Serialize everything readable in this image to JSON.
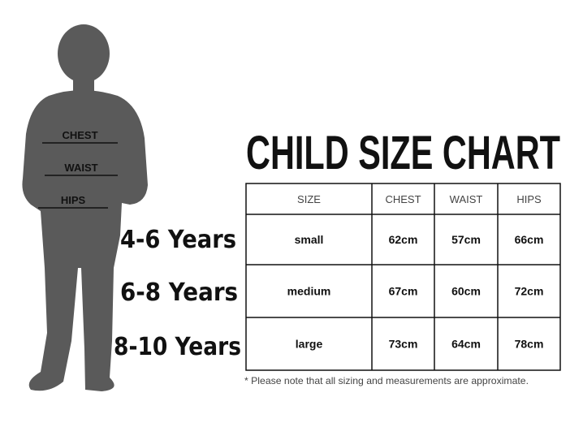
{
  "figure_labels": [
    "CHEST",
    "WAIST",
    "HIPS"
  ],
  "ages": [
    "4-6 Years",
    "6-8 Years",
    "8-10 Years"
  ],
  "title": "CHILD SIZE CHART",
  "table": {
    "header": [
      "SIZE",
      "CHEST",
      "WAIST",
      "HIPS"
    ],
    "rows": [
      [
        "small",
        "62cm",
        "57cm",
        "66cm"
      ],
      [
        "medium",
        "67cm",
        "60cm",
        "72cm"
      ],
      [
        "large",
        "73cm",
        "64cm",
        "78cm"
      ]
    ]
  },
  "note": "* Please note that all sizing and measurements are approximate."
}
